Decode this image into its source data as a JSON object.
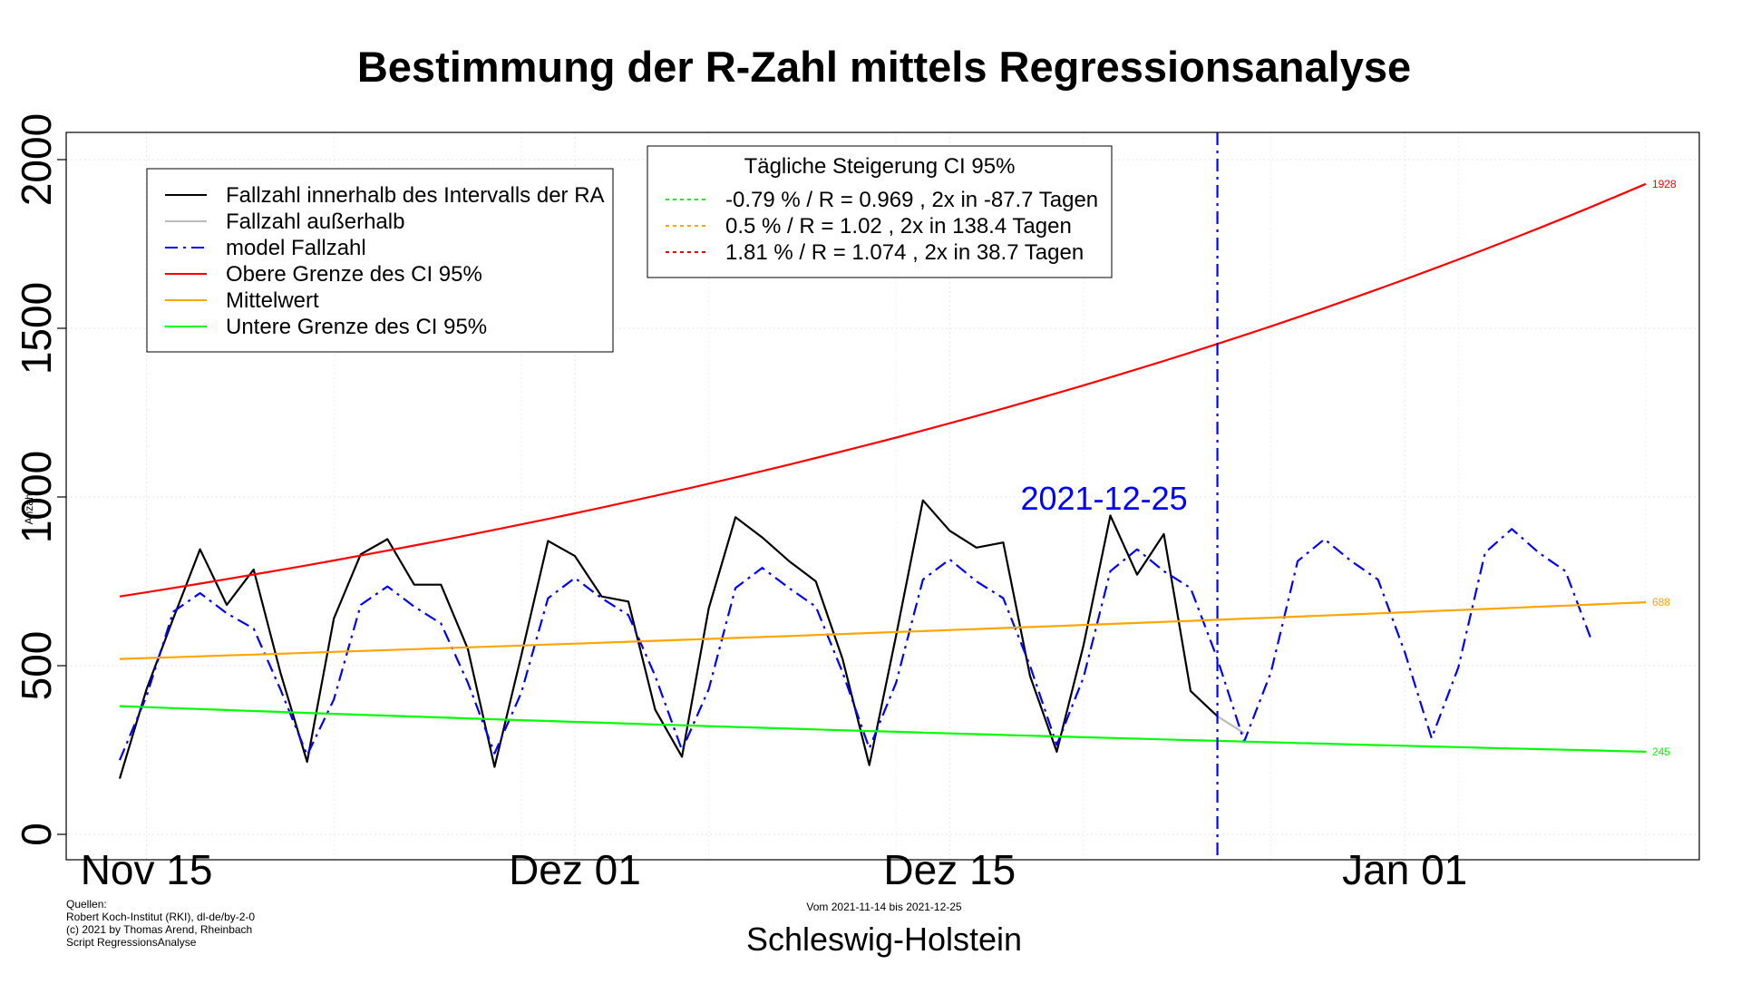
{
  "chart_data": {
    "type": "line",
    "title": "Bestimmung der R-Zahl mittels Regressionsanalyse",
    "ylabel": "Anzahl",
    "xlabel": "Schleswig-Holstein",
    "ylim": [
      0,
      2000
    ],
    "yticks": [
      "0",
      "500",
      "1000",
      "1500",
      "2000"
    ],
    "xticks": [
      {
        "date": "2021-11-15",
        "label": "Nov 15"
      },
      {
        "date": "2021-12-01",
        "label": "Dez 01"
      },
      {
        "date": "2021-12-15",
        "label": "Dez 15"
      },
      {
        "date": "2022-01-01",
        "label": "Jan 01"
      }
    ],
    "xlim": [
      "2021-11-12",
      "2022-01-12"
    ],
    "grid": true,
    "vline": {
      "date": "2021-12-25",
      "label": "2021-12-25",
      "color": "#0000ff"
    },
    "series": [
      {
        "name": "Fallzahl innerhalb des Intervalls der RA",
        "color": "#000000",
        "style": "solid",
        "x_start": "2021-11-14",
        "values": [
          165,
          430,
          640,
          845,
          680,
          785,
          480,
          215,
          640,
          830,
          875,
          740,
          740,
          550,
          200,
          530,
          870,
          825,
          705,
          690,
          370,
          230,
          670,
          940,
          880,
          810,
          750,
          520,
          205,
          590,
          990,
          900,
          850,
          865,
          470,
          245,
          560,
          945,
          770,
          890,
          425,
          350
        ]
      },
      {
        "name": "Fallzahl außerhalb",
        "color": "#bbbbbb",
        "style": "solid",
        "x_start": "2021-12-25",
        "values": [
          350,
          300
        ]
      },
      {
        "name": "model Fallzahl",
        "color": "#0000ff",
        "style": "dashdot",
        "x_start": "2021-11-14",
        "values": [
          220,
          410,
          660,
          715,
          655,
          610,
          430,
          235,
          400,
          680,
          735,
          675,
          625,
          450,
          240,
          420,
          700,
          760,
          700,
          650,
          470,
          250,
          430,
          730,
          790,
          730,
          675,
          480,
          255,
          450,
          755,
          815,
          750,
          700,
          500,
          265,
          465,
          780,
          845,
          780,
          730,
          520,
          275,
          480,
          810,
          875,
          810,
          755,
          540,
          285,
          495,
          835,
          905,
          835,
          780,
          570
        ]
      },
      {
        "name": "Obere Grenze des CI 95%",
        "color": "#ff0000",
        "style": "solid",
        "x_start": "2021-11-14",
        "x_end": "2022-01-10",
        "curve": "exponential",
        "start_value": 705,
        "end_value": 1928,
        "end_label": "1928"
      },
      {
        "name": "Mittelwert",
        "color": "#ffa500",
        "style": "solid",
        "x_start": "2021-11-14",
        "x_end": "2022-01-10",
        "curve": "exponential",
        "start_value": 520,
        "end_value": 688,
        "end_label": "688"
      },
      {
        "name": "Untere Grenze des CI 95%",
        "color": "#00ff00",
        "style": "solid",
        "x_start": "2021-11-14",
        "x_end": "2022-01-10",
        "curve": "exponential",
        "start_value": 380,
        "end_value": 245,
        "end_label": "245"
      }
    ],
    "legend_main": {
      "placement": "top-left",
      "entries": [
        {
          "label": "Fallzahl innerhalb des Intervalls der RA",
          "color": "#000000",
          "style": "solid"
        },
        {
          "label": "Fallzahl außerhalb",
          "color": "#bbbbbb",
          "style": "solid"
        },
        {
          "label": "model Fallzahl",
          "color": "#0000ff",
          "style": "dashdot"
        },
        {
          "label": "Obere Grenze des CI 95%",
          "color": "#ff0000",
          "style": "solid"
        },
        {
          "label": "Mittelwert",
          "color": "#ffa500",
          "style": "solid"
        },
        {
          "label": "Untere Grenze des CI 95%",
          "color": "#00ff00",
          "style": "solid"
        }
      ]
    },
    "legend_ci": {
      "placement": "top-center",
      "title": "Tägliche Steigerung CI  95%",
      "entries": [
        {
          "label": "-0.79 % / R = 0.969 , 2x in -87.7 Tagen",
          "color": "#00ff00",
          "style": "dotted"
        },
        {
          "label": "0.5 % / R = 1.02 , 2x in 138.4 Tagen",
          "color": "#ffa500",
          "style": "dotted"
        },
        {
          "label": "1.81 % / R = 1.074 , 2x in 38.7 Tagen",
          "color": "#ff0000",
          "style": "dotted"
        }
      ]
    }
  },
  "footer": {
    "sources": [
      "Quellen:",
      "Robert Koch-Institut (RKI), dl-de/by-2-0",
      "(c) 2021 by Thomas Arend, Rheinbach",
      "Script RegressionsAnalyse"
    ],
    "period": "Vom 2021-11-14 bis 2021-12-25"
  }
}
